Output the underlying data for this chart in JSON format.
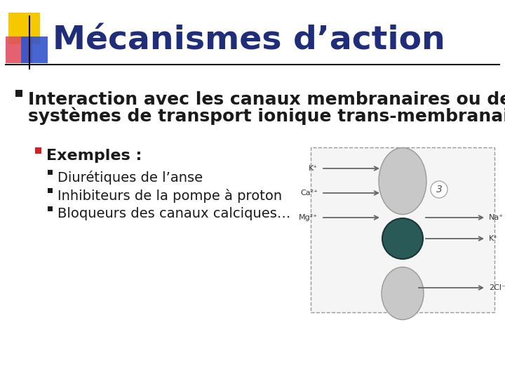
{
  "title": "Mécanismes d’action",
  "title_color": "#1F2D7B",
  "title_fontsize": 34,
  "bg_color": "#FFFFFF",
  "bullet1_line1": "Interaction avec les canaux membranaires ou des",
  "bullet1_line2": "systèmes de transport ionique trans-membranaire",
  "bullet1_fontsize": 18,
  "sub_bullet_header": "Exemples :",
  "sub_bullet_header_fontsize": 16,
  "sub_bullets": [
    "Diurétiques de l’anse",
    "Inhibiteurs de la pompe à proton",
    "Bloqueurs des canaux calciques…"
  ],
  "sub_bullet_fontsize": 14,
  "text_color": "#1a1a1a",
  "red_square_color": "#CC2222",
  "header_line_color": "#111111",
  "logo_yellow": "#F5C800",
  "logo_red": "#E05060",
  "logo_blue": "#3355CC",
  "arrow_color": "#666666",
  "diagram_gray": "#b8b8b8",
  "diagram_tube_color": "#c8c8c8",
  "diagram_circle_color": "#2a5a58"
}
